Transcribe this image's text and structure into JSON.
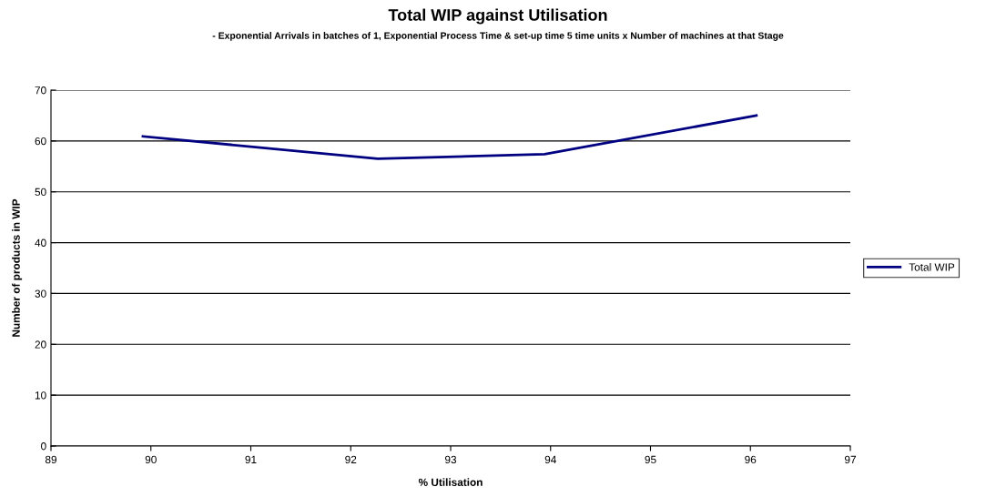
{
  "chart_data": {
    "type": "line",
    "title": "Total WIP against Utilisation",
    "subtitle": "- Exponential Arrivals in batches of 1, Exponential Process Time & set-up time 5 time units x Number of machines at that Stage",
    "xlabel": "% Utilisation",
    "ylabel": "Number of products in WIP",
    "x": [
      89.92,
      92.27,
      93.94,
      96.06
    ],
    "series": [
      {
        "name": "Total WIP",
        "color": "#000080",
        "values": [
          60.9,
          56.5,
          57.4,
          65.0
        ]
      }
    ],
    "xlim": [
      89,
      97
    ],
    "xticks": [
      89,
      90,
      91,
      92,
      93,
      94,
      95,
      96,
      97
    ],
    "ylim": [
      0,
      70
    ],
    "yticks": [
      0,
      10,
      20,
      30,
      40,
      50,
      60,
      70
    ],
    "grid": "y",
    "legend": "right",
    "marker": "none",
    "line_style": "solid"
  }
}
